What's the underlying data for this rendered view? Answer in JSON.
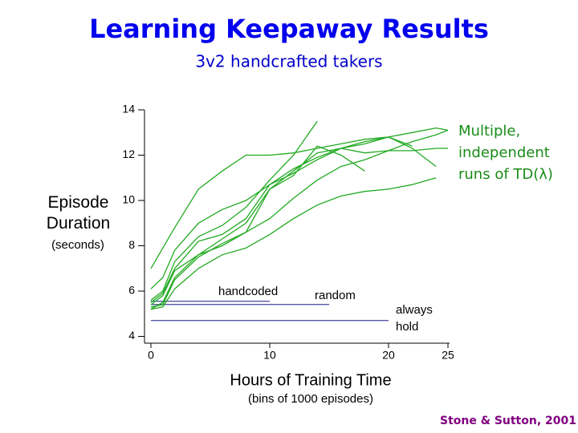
{
  "chart_data": {
    "type": "line",
    "title": "Learning Keepaway Results",
    "subtitle": "3v2 handcrafted takers",
    "y_label": "Episode Duration",
    "y_sublabel": "(seconds)",
    "x_label": "Hours of Training Time",
    "x_sublabel": "(bins of 1000 episodes)",
    "credit": "Stone & Sutton, 2001",
    "annotation": "Multiple, independent runs of TD(λ)",
    "x": [
      0,
      1,
      2,
      4,
      6,
      8,
      10,
      12,
      14,
      16,
      18,
      20,
      22,
      24,
      25
    ],
    "series": [
      {
        "color": "#22aa22",
        "values": [
          7.0,
          7.9,
          8.8,
          10.5,
          11.3,
          12.0,
          12.0,
          12.1,
          12.3,
          12.5,
          12.7,
          12.8,
          13.0,
          13.2,
          13.1
        ]
      },
      {
        "color": "#22aa22",
        "values": [
          6.1,
          6.6,
          7.8,
          9.0,
          9.6,
          10.0,
          10.7,
          11.2,
          11.8,
          12.3,
          12.6,
          12.8,
          12.3,
          11.5,
          null
        ]
      },
      {
        "color": "#22aa22",
        "values": [
          5.6,
          6.0,
          7.3,
          8.4,
          8.9,
          9.7,
          10.9,
          12.0,
          13.5,
          null,
          null,
          null,
          null,
          null,
          null
        ]
      },
      {
        "color": "#22aa22",
        "values": [
          5.3,
          5.4,
          6.5,
          7.5,
          8.1,
          8.6,
          10.5,
          11.3,
          12.1,
          12.3,
          12.1,
          12.2,
          12.2,
          12.3,
          12.3
        ]
      },
      {
        "color": "#22aa22",
        "values": [
          5.2,
          5.3,
          6.1,
          7.0,
          7.6,
          7.9,
          8.5,
          9.2,
          9.8,
          10.2,
          10.4,
          10.5,
          10.7,
          11.0,
          null
        ]
      },
      {
        "color": "#22aa22",
        "values": [
          5.5,
          5.9,
          7.0,
          8.2,
          8.5,
          9.2,
          10.7,
          11.4,
          11.9,
          12.3,
          12.5,
          12.8,
          12.4,
          null,
          null
        ]
      },
      {
        "color": "#22aa22",
        "values": [
          5.2,
          5.5,
          6.6,
          7.6,
          8.0,
          8.6,
          9.2,
          10.1,
          10.9,
          11.5,
          11.8,
          12.2,
          12.6,
          12.9,
          13.1
        ]
      },
      {
        "color": "#22aa22",
        "values": [
          5.4,
          5.8,
          6.9,
          7.6,
          8.3,
          9.0,
          10.5,
          11.1,
          12.4,
          12.0,
          11.3,
          null,
          null,
          null,
          null
        ]
      }
    ],
    "reference_lines": [
      {
        "label": "handcoded",
        "value": 5.55,
        "xrange": [
          0,
          10
        ],
        "color": "#1a1a8c"
      },
      {
        "label": "random",
        "value": 5.41,
        "xrange": [
          0,
          15
        ],
        "color": "#1a1a8c"
      },
      {
        "label": "always hold",
        "value": 4.7,
        "xrange": [
          0,
          20
        ],
        "color": "#1a1a8c"
      }
    ],
    "xlim": [
      -0.5,
      25
    ],
    "ylim": [
      3.7,
      14
    ],
    "xticks": [
      0,
      10,
      20,
      25
    ],
    "yticks": [
      4,
      6,
      8,
      10,
      12,
      14
    ]
  }
}
